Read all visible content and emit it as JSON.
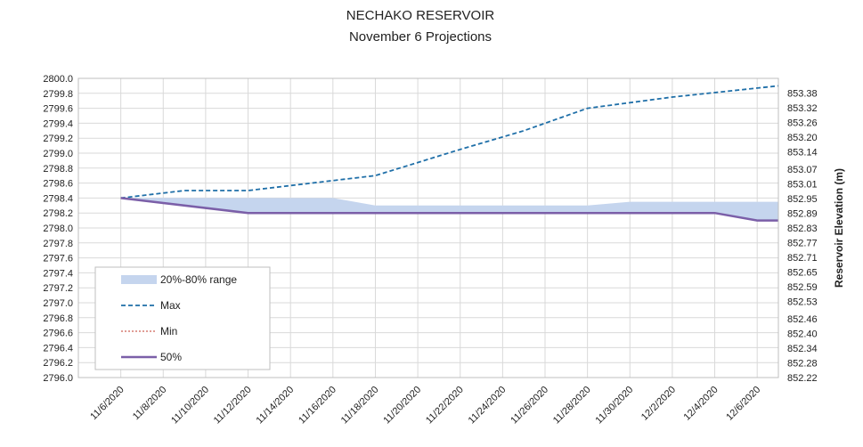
{
  "chart_data": {
    "type": "line",
    "title": "NECHAKO RESERVOIR",
    "subtitle": "November 6 Projections",
    "xlabel": "",
    "ylabel": "",
    "y2label": "Reservoir Elevation (m)",
    "x_tick_labels": [
      "11/6/2020",
      "11/8/2020",
      "11/10/2020",
      "11/12/2020",
      "11/14/2020",
      "11/16/2020",
      "11/18/2020",
      "11/20/2020",
      "11/22/2020",
      "11/24/2020",
      "11/26/2020",
      "11/28/2020",
      "11/30/2020",
      "12/2/2020",
      "12/4/2020",
      "12/6/2020"
    ],
    "xlim": [
      "2020-11-04",
      "2020-12-07"
    ],
    "ylim": [
      2796.0,
      2800.0
    ],
    "y_ticks": [
      "2796.0",
      "2796.2",
      "2796.4",
      "2796.6",
      "2796.8",
      "2797.0",
      "2797.2",
      "2797.4",
      "2797.6",
      "2797.8",
      "2798.0",
      "2798.2",
      "2798.4",
      "2798.6",
      "2798.8",
      "2799.0",
      "2799.2",
      "2799.4",
      "2799.6",
      "2799.8",
      "2800.0"
    ],
    "y2lim": [
      852.22,
      853.44
    ],
    "y2_ticks": [
      "853.38",
      "853.32",
      "853.26",
      "853.20",
      "853.14",
      "853.07",
      "853.01",
      "852.95",
      "852.89",
      "852.83",
      "852.77",
      "852.71",
      "852.65",
      "852.59",
      "852.53",
      "852.46",
      "852.40",
      "852.34",
      "852.28",
      "852.22"
    ],
    "grid": true,
    "legend": "bottom-left",
    "series": [
      {
        "name": "20%-80% range",
        "kind": "band",
        "color": "#c5d5ee",
        "points": [
          {
            "x": "2020-11-06",
            "low": 2798.4,
            "high": 2798.4
          },
          {
            "x": "2020-11-12",
            "low": 2798.2,
            "high": 2798.4
          },
          {
            "x": "2020-11-16",
            "low": 2798.2,
            "high": 2798.4
          },
          {
            "x": "2020-11-18",
            "low": 2798.2,
            "high": 2798.3
          },
          {
            "x": "2020-11-28",
            "low": 2798.2,
            "high": 2798.3
          },
          {
            "x": "2020-11-30",
            "low": 2798.2,
            "high": 2798.35
          },
          {
            "x": "2020-12-04",
            "low": 2798.2,
            "high": 2798.35
          },
          {
            "x": "2020-12-06",
            "low": 2798.1,
            "high": 2798.35
          },
          {
            "x": "2020-12-07",
            "low": 2798.1,
            "high": 2798.35
          }
        ]
      },
      {
        "name": "Max",
        "kind": "line",
        "color": "#1f6fa8",
        "dash": "dashed",
        "points": [
          {
            "x": "2020-11-06",
            "y": 2798.4
          },
          {
            "x": "2020-11-09",
            "y": 2798.5
          },
          {
            "x": "2020-11-12",
            "y": 2798.5
          },
          {
            "x": "2020-11-15",
            "y": 2798.6
          },
          {
            "x": "2020-11-18",
            "y": 2798.7
          },
          {
            "x": "2020-11-22",
            "y": 2799.05
          },
          {
            "x": "2020-11-25",
            "y": 2799.3
          },
          {
            "x": "2020-11-28",
            "y": 2799.6
          },
          {
            "x": "2020-12-02",
            "y": 2799.75
          },
          {
            "x": "2020-12-07",
            "y": 2799.9
          }
        ]
      },
      {
        "name": "Min",
        "kind": "line",
        "color": "#c0392b",
        "dash": "dotted",
        "points": [
          {
            "x": "2020-11-06",
            "y": 2798.4
          },
          {
            "x": "2020-11-12",
            "y": 2798.2
          },
          {
            "x": "2020-12-04",
            "y": 2798.2
          },
          {
            "x": "2020-12-06",
            "y": 2798.1
          },
          {
            "x": "2020-12-07",
            "y": 2798.1
          }
        ]
      },
      {
        "name": "50%",
        "kind": "line",
        "color": "#7b5fa8",
        "dash": "solid",
        "points": [
          {
            "x": "2020-11-06",
            "y": 2798.4
          },
          {
            "x": "2020-11-12",
            "y": 2798.2
          },
          {
            "x": "2020-12-04",
            "y": 2798.2
          },
          {
            "x": "2020-12-06",
            "y": 2798.1
          },
          {
            "x": "2020-12-07",
            "y": 2798.1
          }
        ]
      }
    ]
  }
}
